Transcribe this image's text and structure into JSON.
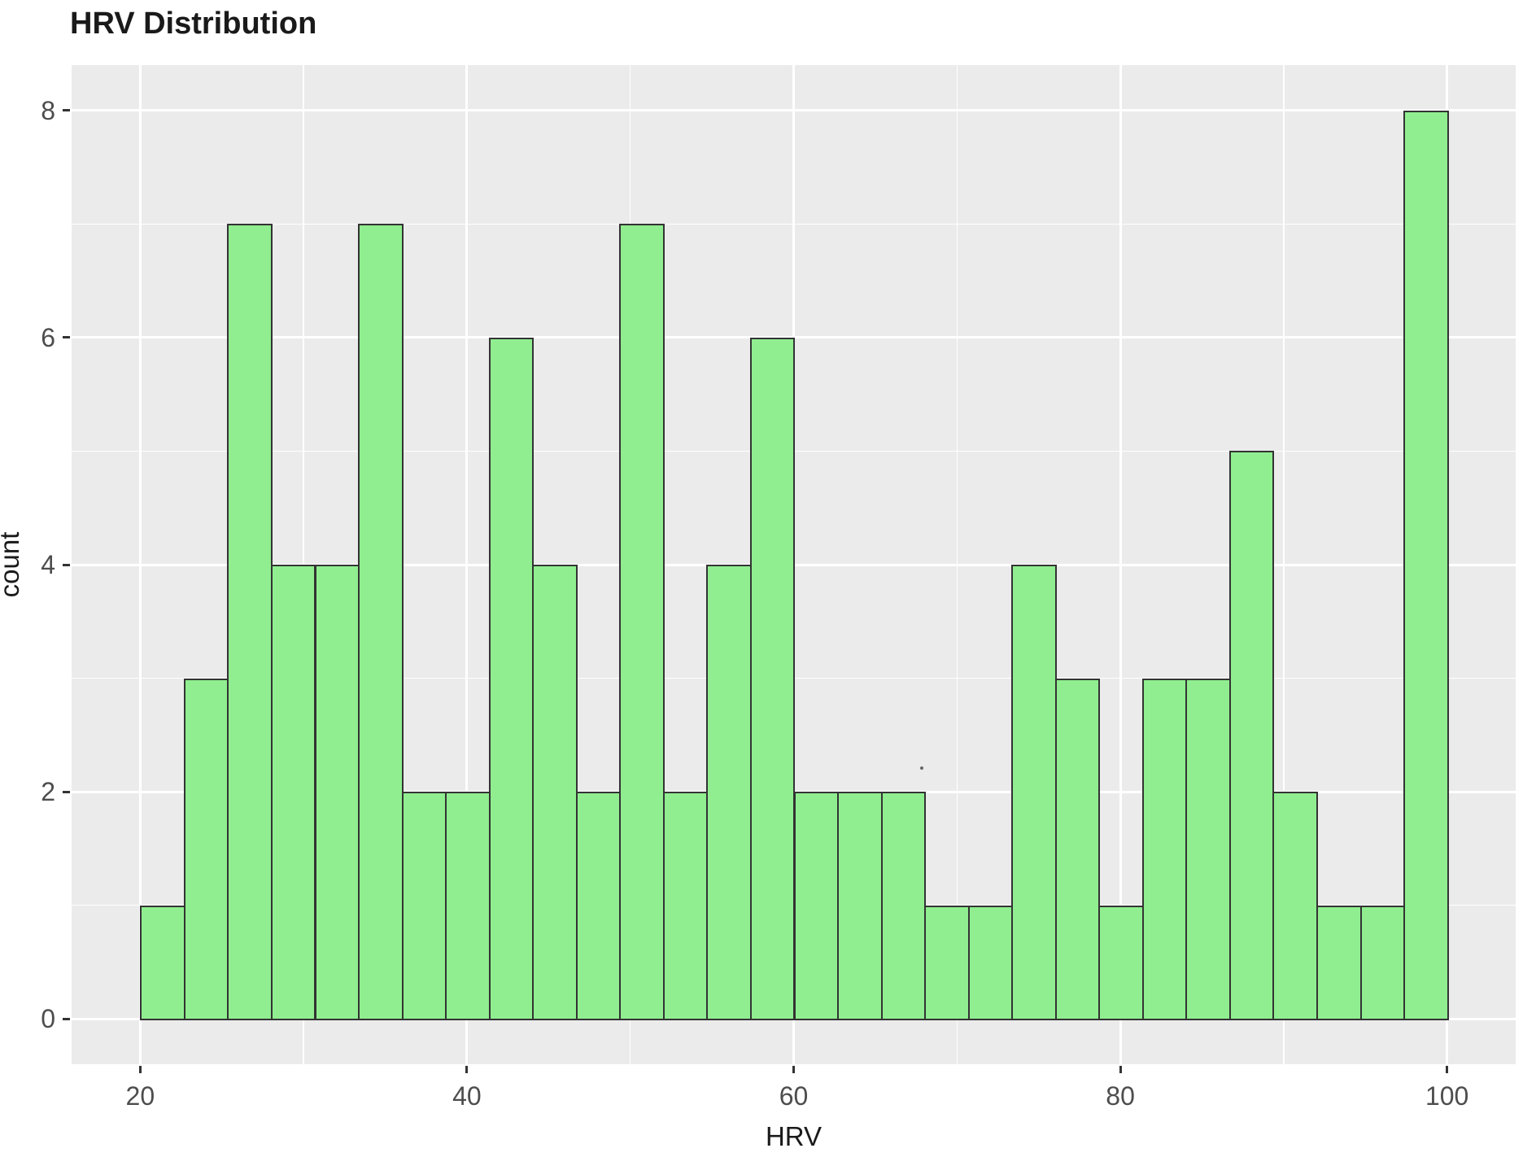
{
  "chart_data": {
    "type": "bar",
    "subtype": "histogram",
    "title": "HRV Distribution",
    "xlabel": "HRV",
    "ylabel": "count",
    "bin_start": 20,
    "bin_end": 100,
    "n_bins": 30,
    "bin_width": 2.6667,
    "values": [
      1,
      3,
      7,
      4,
      4,
      7,
      2,
      2,
      6,
      4,
      2,
      7,
      2,
      4,
      6,
      2,
      2,
      2,
      1,
      1,
      4,
      3,
      1,
      3,
      3,
      5,
      2,
      1,
      1,
      8
    ],
    "x_ticks": [
      20,
      40,
      60,
      80,
      100
    ],
    "y_ticks": [
      0,
      2,
      4,
      6,
      8
    ],
    "x_minor_ticks": [
      30,
      50,
      70,
      90
    ],
    "y_minor_ticks": [
      1,
      3,
      5,
      7
    ],
    "xlim": [
      15.8,
      104.2
    ],
    "ylim": [
      -0.4,
      8.4
    ],
    "grid": "major-and-minor",
    "legend_position": "none",
    "colors": {
      "panel_background": "#EBEBEB",
      "gridline": "#FFFFFF",
      "bar_fill": "#90EE90",
      "bar_stroke": "#333333",
      "tick_mark": "#333333",
      "tick_label_text": "#4D4D4D",
      "axis_label_text": "#1A1A1A",
      "title_text": "#1A1A1A",
      "figure_background": "#FFFFFF"
    }
  }
}
